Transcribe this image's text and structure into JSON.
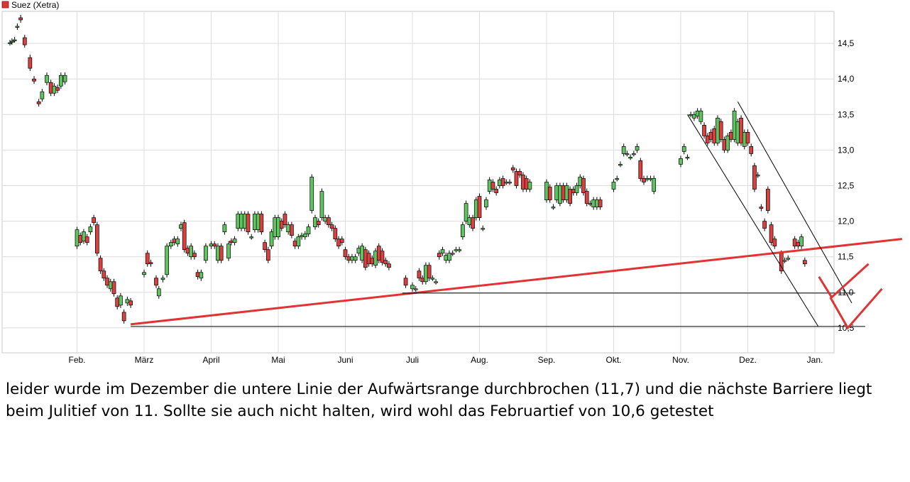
{
  "chart_data": {
    "type": "candlestick",
    "title": "",
    "legend": {
      "label": "Suez (Xetra)",
      "color": "#e03434",
      "placement": "top-left"
    },
    "x_ticks": [
      "Feb.",
      "März",
      "April",
      "Mai",
      "Juni",
      "Juli",
      "Aug.",
      "Sep.",
      "Okt.",
      "Nov.",
      "Dez.",
      "Jan."
    ],
    "y_ticks": [
      "14,5",
      "14,0",
      "13,5",
      "13,0",
      "12,5",
      "12,0",
      "11,5",
      "11,0",
      "10,5"
    ],
    "y_tick_values": [
      14.5,
      14.0,
      13.5,
      13.0,
      12.5,
      12.0,
      11.5,
      11.0,
      10.5
    ],
    "ylim": [
      10.15,
      14.95
    ],
    "grid": true,
    "up_color": "#5fc35f",
    "down_color": "#d94040",
    "candles": [
      {
        "m": 0.0,
        "o": 14.51,
        "c": 14.51
      },
      {
        "m": 0.03,
        "o": 14.52,
        "c": 14.53
      },
      {
        "m": 0.07,
        "o": 14.55,
        "c": 14.55
      },
      {
        "m": 0.11,
        "o": 14.73,
        "c": 14.74
      },
      {
        "m": 0.16,
        "o": 14.86,
        "c": 14.83
      },
      {
        "m": 0.22,
        "o": 14.58,
        "c": 14.48
      },
      {
        "m": 0.3,
        "o": 14.3,
        "c": 14.15
      },
      {
        "m": 0.36,
        "o": 14.0,
        "c": 13.97
      },
      {
        "m": 0.43,
        "o": 13.68,
        "c": 13.65
      },
      {
        "m": 0.48,
        "o": 13.72,
        "c": 13.82
      },
      {
        "m": 0.55,
        "o": 13.95,
        "c": 14.05
      },
      {
        "m": 0.61,
        "o": 13.95,
        "c": 13.8
      },
      {
        "m": 0.66,
        "o": 13.8,
        "c": 13.9
      },
      {
        "m": 0.71,
        "o": 13.88,
        "c": 13.84
      },
      {
        "m": 0.76,
        "o": 13.9,
        "c": 14.05
      },
      {
        "m": 0.82,
        "o": 13.96,
        "c": 14.05
      },
      {
        "m": 1.0,
        "o": 11.65,
        "c": 11.88
      },
      {
        "m": 1.05,
        "o": 11.8,
        "c": 11.7
      },
      {
        "m": 1.1,
        "o": 11.72,
        "c": 11.85
      },
      {
        "m": 1.15,
        "o": 11.78,
        "c": 11.7
      },
      {
        "m": 1.2,
        "o": 11.85,
        "c": 11.92
      },
      {
        "m": 1.25,
        "o": 12.05,
        "c": 11.98
      },
      {
        "m": 1.3,
        "o": 11.95,
        "c": 11.55
      },
      {
        "m": 1.35,
        "o": 11.48,
        "c": 11.3
      },
      {
        "m": 1.4,
        "o": 11.3,
        "c": 11.2
      },
      {
        "m": 1.45,
        "o": 11.2,
        "c": 11.1
      },
      {
        "m": 1.5,
        "o": 11.05,
        "c": 11.15
      },
      {
        "m": 1.55,
        "o": 11.15,
        "c": 10.98
      },
      {
        "m": 1.6,
        "o": 10.92,
        "c": 10.8
      },
      {
        "m": 1.65,
        "o": 10.82,
        "c": 10.95
      },
      {
        "m": 1.7,
        "o": 10.72,
        "c": 10.6
      },
      {
        "m": 1.75,
        "o": 10.85,
        "c": 10.9
      },
      {
        "m": 1.8,
        "o": 10.88,
        "c": 10.82
      },
      {
        "m": 2.0,
        "o": 11.25,
        "c": 11.28
      },
      {
        "m": 2.05,
        "o": 11.55,
        "c": 11.4
      },
      {
        "m": 2.1,
        "o": 11.42,
        "c": 11.4
      },
      {
        "m": 2.18,
        "o": 11.2,
        "c": 11.1
      },
      {
        "m": 2.22,
        "o": 10.95,
        "c": 11.05
      },
      {
        "m": 2.28,
        "o": 11.18,
        "c": 11.2
      },
      {
        "m": 2.34,
        "o": 11.25,
        "c": 11.65
      },
      {
        "m": 2.4,
        "o": 11.65,
        "c": 11.7
      },
      {
        "m": 2.45,
        "o": 11.75,
        "c": 11.7
      },
      {
        "m": 2.5,
        "o": 11.68,
        "c": 11.75
      },
      {
        "m": 2.55,
        "o": 11.9,
        "c": 11.95
      },
      {
        "m": 2.6,
        "o": 11.98,
        "c": 11.6
      },
      {
        "m": 2.65,
        "o": 11.62,
        "c": 11.55
      },
      {
        "m": 2.7,
        "o": 11.5,
        "c": 11.65
      },
      {
        "m": 2.75,
        "o": 11.55,
        "c": 11.5
      },
      {
        "m": 2.8,
        "o": 11.28,
        "c": 11.22
      },
      {
        "m": 2.85,
        "o": 11.2,
        "c": 11.28
      },
      {
        "m": 2.92,
        "o": 11.45,
        "c": 11.65
      },
      {
        "m": 3.0,
        "o": 11.65,
        "c": 11.68
      },
      {
        "m": 3.05,
        "o": 11.68,
        "c": 11.65
      },
      {
        "m": 3.1,
        "o": 11.45,
        "c": 11.65
      },
      {
        "m": 3.15,
        "o": 11.65,
        "c": 11.45
      },
      {
        "m": 3.2,
        "o": 11.85,
        "c": 11.95
      },
      {
        "m": 3.26,
        "o": 11.48,
        "c": 11.68
      },
      {
        "m": 3.3,
        "o": 11.72,
        "c": 11.7
      },
      {
        "m": 3.35,
        "o": 11.7,
        "c": 11.75
      },
      {
        "m": 3.4,
        "o": 11.9,
        "c": 12.1
      },
      {
        "m": 3.45,
        "o": 11.9,
        "c": 12.1
      },
      {
        "m": 3.5,
        "o": 11.9,
        "c": 12.1
      },
      {
        "m": 3.55,
        "o": 12.1,
        "c": 11.85
      },
      {
        "m": 3.6,
        "o": 11.78,
        "c": 11.78
      },
      {
        "m": 3.65,
        "o": 11.88,
        "c": 12.1
      },
      {
        "m": 3.7,
        "o": 11.88,
        "c": 12.1
      },
      {
        "m": 3.75,
        "o": 12.1,
        "c": 11.85
      },
      {
        "m": 3.8,
        "o": 11.7,
        "c": 11.6
      },
      {
        "m": 3.85,
        "o": 11.6,
        "c": 11.45
      },
      {
        "m": 3.9,
        "o": 11.65,
        "c": 11.85
      },
      {
        "m": 3.95,
        "o": 11.78,
        "c": 12.05
      },
      {
        "m": 4.0,
        "o": 11.78,
        "c": 12.05
      },
      {
        "m": 4.05,
        "o": 12.0,
        "c": 11.9
      },
      {
        "m": 4.1,
        "o": 12.1,
        "c": 11.95
      },
      {
        "m": 4.15,
        "o": 11.85,
        "c": 11.95
      },
      {
        "m": 4.2,
        "o": 11.95,
        "c": 11.8
      },
      {
        "m": 4.25,
        "o": 11.72,
        "c": 11.65
      },
      {
        "m": 4.3,
        "o": 11.65,
        "c": 11.78
      },
      {
        "m": 4.35,
        "o": 11.78,
        "c": 11.8
      },
      {
        "m": 4.4,
        "o": 11.78,
        "c": 11.82
      },
      {
        "m": 4.45,
        "o": 11.82,
        "c": 11.92
      },
      {
        "m": 4.5,
        "o": 12.15,
        "c": 12.62
      },
      {
        "m": 4.55,
        "o": 11.92,
        "c": 12.05
      },
      {
        "m": 4.6,
        "o": 12.0,
        "c": 11.95
      },
      {
        "m": 4.65,
        "o": 12.05,
        "c": 12.42
      },
      {
        "m": 4.7,
        "o": 12.0,
        "c": 12.05
      },
      {
        "m": 4.75,
        "o": 12.05,
        "c": 11.95
      },
      {
        "m": 4.8,
        "o": 11.95,
        "c": 11.9
      },
      {
        "m": 4.85,
        "o": 11.9,
        "c": 11.75
      },
      {
        "m": 4.9,
        "o": 11.75,
        "c": 11.65
      },
      {
        "m": 4.95,
        "o": 11.75,
        "c": 11.7
      },
      {
        "m": 5.0,
        "o": 11.6,
        "c": 11.5
      },
      {
        "m": 5.05,
        "o": 11.5,
        "c": 11.45
      },
      {
        "m": 5.1,
        "o": 11.45,
        "c": 11.5
      },
      {
        "m": 5.15,
        "o": 11.45,
        "c": 11.5
      },
      {
        "m": 5.2,
        "o": 11.55,
        "c": 11.62
      },
      {
        "m": 5.25,
        "o": 11.45,
        "c": 11.65
      },
      {
        "m": 5.3,
        "o": 11.6,
        "c": 11.35
      },
      {
        "m": 5.35,
        "o": 11.55,
        "c": 11.4
      },
      {
        "m": 5.4,
        "o": 11.48,
        "c": 11.4
      },
      {
        "m": 5.45,
        "o": 11.38,
        "c": 11.58
      },
      {
        "m": 5.5,
        "o": 11.65,
        "c": 11.45
      },
      {
        "m": 5.55,
        "o": 11.58,
        "c": 11.42
      },
      {
        "m": 5.6,
        "o": 11.45,
        "c": 11.4
      },
      {
        "m": 5.65,
        "o": 11.4,
        "c": 11.35
      },
      {
        "m": 5.9,
        "o": 11.2,
        "c": 11.1
      },
      {
        "m": 6.0,
        "o": 11.05,
        "c": 11.1
      },
      {
        "m": 6.05,
        "o": 11.05,
        "c": 11.05
      },
      {
        "m": 6.1,
        "o": 11.3,
        "c": 11.2
      },
      {
        "m": 6.15,
        "o": 11.2,
        "c": 11.15
      },
      {
        "m": 6.2,
        "o": 11.15,
        "c": 11.38
      },
      {
        "m": 6.25,
        "o": 11.38,
        "c": 11.2
      },
      {
        "m": 6.3,
        "o": 11.2,
        "c": 11.2
      },
      {
        "m": 6.35,
        "o": 11.15,
        "c": 11.15
      },
      {
        "m": 6.4,
        "o": 11.55,
        "c": 11.5
      },
      {
        "m": 6.45,
        "o": 11.55,
        "c": 11.6
      },
      {
        "m": 6.5,
        "o": 11.45,
        "c": 11.52
      },
      {
        "m": 6.55,
        "o": 11.45,
        "c": 11.55
      },
      {
        "m": 6.6,
        "o": 11.55,
        "c": 11.55
      },
      {
        "m": 6.65,
        "o": 11.6,
        "c": 11.6
      },
      {
        "m": 6.7,
        "o": 11.6,
        "c": 11.6
      },
      {
        "m": 6.75,
        "o": 11.78,
        "c": 11.95
      },
      {
        "m": 6.8,
        "o": 12.0,
        "c": 12.25
      },
      {
        "m": 6.85,
        "o": 11.95,
        "c": 12.05
      },
      {
        "m": 6.9,
        "o": 12.05,
        "c": 11.9
      },
      {
        "m": 6.95,
        "o": 12.05,
        "c": 12.3
      },
      {
        "m": 7.0,
        "o": 12.35,
        "c": 12.05
      },
      {
        "m": 7.05,
        "o": 11.9,
        "c": 11.9
      },
      {
        "m": 7.1,
        "o": 12.2,
        "c": 12.3
      },
      {
        "m": 7.15,
        "o": 12.42,
        "c": 12.58
      },
      {
        "m": 7.2,
        "o": 12.55,
        "c": 12.45
      },
      {
        "m": 7.25,
        "o": 12.45,
        "c": 12.4
      },
      {
        "m": 7.3,
        "o": 12.5,
        "c": 12.58
      },
      {
        "m": 7.35,
        "o": 12.6,
        "c": 12.5
      },
      {
        "m": 7.4,
        "o": 12.55,
        "c": 12.55
      },
      {
        "m": 7.45,
        "o": 12.55,
        "c": 12.55
      },
      {
        "m": 7.5,
        "o": 12.75,
        "c": 12.72
      },
      {
        "m": 7.55,
        "o": 12.7,
        "c": 12.5
      },
      {
        "m": 7.6,
        "o": 12.7,
        "c": 12.65
      },
      {
        "m": 7.65,
        "o": 12.65,
        "c": 12.45
      },
      {
        "m": 7.7,
        "o": 12.6,
        "c": 12.45
      },
      {
        "m": 7.75,
        "o": 12.45,
        "c": 12.55
      },
      {
        "m": 8.0,
        "o": 12.3,
        "c": 12.55
      },
      {
        "m": 8.05,
        "o": 12.48,
        "c": 12.3
      },
      {
        "m": 8.1,
        "o": 12.2,
        "c": 12.2
      },
      {
        "m": 8.15,
        "o": 12.3,
        "c": 12.5
      },
      {
        "m": 8.2,
        "o": 12.25,
        "c": 12.5
      },
      {
        "m": 8.25,
        "o": 12.5,
        "c": 12.3
      },
      {
        "m": 8.3,
        "o": 12.3,
        "c": 12.5
      },
      {
        "m": 8.35,
        "o": 12.45,
        "c": 12.25
      },
      {
        "m": 8.4,
        "o": 12.45,
        "c": 12.4
      },
      {
        "m": 8.45,
        "o": 12.4,
        "c": 12.5
      },
      {
        "m": 8.5,
        "o": 12.5,
        "c": 12.62
      },
      {
        "m": 8.55,
        "o": 12.6,
        "c": 12.4
      },
      {
        "m": 8.6,
        "o": 12.42,
        "c": 12.25
      },
      {
        "m": 8.65,
        "o": 12.25,
        "c": 12.25
      },
      {
        "m": 8.7,
        "o": 12.2,
        "c": 12.3
      },
      {
        "m": 8.75,
        "o": 12.2,
        "c": 12.3
      },
      {
        "m": 8.8,
        "o": 12.3,
        "c": 12.2
      },
      {
        "m": 9.0,
        "o": 12.45,
        "c": 12.55
      },
      {
        "m": 9.05,
        "o": 12.6,
        "c": 12.6
      },
      {
        "m": 9.1,
        "o": 12.8,
        "c": 12.8
      },
      {
        "m": 9.15,
        "o": 12.95,
        "c": 13.05
      },
      {
        "m": 9.2,
        "o": 12.95,
        "c": 12.95
      },
      {
        "m": 9.25,
        "o": 12.9,
        "c": 12.9
      },
      {
        "m": 9.3,
        "o": 12.95,
        "c": 12.95
      },
      {
        "m": 9.35,
        "o": 13.0,
        "c": 13.05
      },
      {
        "m": 9.4,
        "o": 12.85,
        "c": 12.6
      },
      {
        "m": 9.45,
        "o": 12.6,
        "c": 12.55
      },
      {
        "m": 9.5,
        "o": 12.6,
        "c": 12.6
      },
      {
        "m": 9.55,
        "o": 12.6,
        "c": 12.6
      },
      {
        "m": 9.6,
        "o": 12.42,
        "c": 12.6
      },
      {
        "m": 10.0,
        "o": 12.8,
        "c": 12.88
      },
      {
        "m": 10.05,
        "o": 12.98,
        "c": 13.05
      },
      {
        "m": 10.1,
        "o": 12.9,
        "c": 12.9
      },
      {
        "m": 10.15,
        "o": 13.5,
        "c": 13.5
      },
      {
        "m": 10.2,
        "o": 13.45,
        "c": 13.5
      },
      {
        "m": 10.25,
        "o": 13.48,
        "c": 13.55
      },
      {
        "m": 10.3,
        "o": 13.4,
        "c": 13.55
      },
      {
        "m": 10.35,
        "o": 13.35,
        "c": 13.2
      },
      {
        "m": 10.4,
        "o": 13.2,
        "c": 13.1
      },
      {
        "m": 10.45,
        "o": 13.25,
        "c": 13.15
      },
      {
        "m": 10.5,
        "o": 13.3,
        "c": 13.1
      },
      {
        "m": 10.55,
        "o": 13.1,
        "c": 13.45
      },
      {
        "m": 10.6,
        "o": 13.4,
        "c": 13.15
      },
      {
        "m": 10.65,
        "o": 13.15,
        "c": 13.0
      },
      {
        "m": 10.7,
        "o": 13.0,
        "c": 13.2
      },
      {
        "m": 10.75,
        "o": 13.25,
        "c": 13.15
      },
      {
        "m": 10.8,
        "o": 13.15,
        "c": 13.55
      },
      {
        "m": 10.85,
        "o": 13.1,
        "c": 13.4
      },
      {
        "m": 10.9,
        "o": 13.45,
        "c": 13.1
      },
      {
        "m": 10.95,
        "o": 13.05,
        "c": 13.25
      },
      {
        "m": 11.0,
        "o": 13.25,
        "c": 13.1
      },
      {
        "m": 11.05,
        "o": 13.05,
        "c": 12.95
      },
      {
        "m": 11.1,
        "o": 12.78,
        "c": 12.45
      },
      {
        "m": 11.15,
        "o": 12.65,
        "c": 12.65
      },
      {
        "m": 11.2,
        "o": 12.2,
        "c": 12.18
      },
      {
        "m": 11.25,
        "o": 12.0,
        "c": 11.9
      },
      {
        "m": 11.3,
        "o": 12.45,
        "c": 12.15
      },
      {
        "m": 11.35,
        "o": 11.95,
        "c": 11.7
      },
      {
        "m": 11.4,
        "o": 11.75,
        "c": 11.65
      },
      {
        "m": 11.5,
        "o": 11.55,
        "c": 11.3
      },
      {
        "m": 11.55,
        "o": 11.45,
        "c": 11.45
      },
      {
        "m": 11.6,
        "o": 11.48,
        "c": 11.48
      },
      {
        "m": 11.7,
        "o": 11.75,
        "c": 11.65
      },
      {
        "m": 11.75,
        "o": 11.7,
        "c": 11.65
      },
      {
        "m": 11.8,
        "o": 11.65,
        "c": 11.78
      },
      {
        "m": 11.85,
        "o": 11.45,
        "c": 11.4
      }
    ],
    "overlay_lines": [
      {
        "role": "rising trendline",
        "color": "#e03434",
        "from_m": 1.8,
        "from_y": 10.55,
        "to_m": 13.3,
        "to_y": 11.75
      },
      {
        "role": "support July low",
        "color": "#000000",
        "from_m": 5.85,
        "from_y": 10.99,
        "to_m": 12.6,
        "to_y": 10.99
      },
      {
        "role": "support February low",
        "color": "#000000",
        "from_m": 1.8,
        "from_y": 10.52,
        "to_m": 12.75,
        "to_y": 10.52
      },
      {
        "role": "channel upper",
        "color": "#000000",
        "from_m": 10.85,
        "from_y": 13.68,
        "to_m": 12.55,
        "to_y": 10.85
      },
      {
        "role": "channel lower",
        "color": "#000000",
        "from_m": 10.1,
        "from_y": 13.5,
        "to_m": 12.05,
        "to_y": 10.52
      },
      {
        "role": "scenario A",
        "color": "#e03434",
        "points": [
          [
            12.06,
            11.22
          ],
          [
            12.25,
            10.93
          ],
          [
            12.8,
            11.4
          ]
        ]
      },
      {
        "role": "scenario B",
        "color": "#e03434",
        "points": [
          [
            12.23,
            10.93
          ],
          [
            12.49,
            10.5
          ],
          [
            13.0,
            11.05
          ]
        ]
      }
    ]
  },
  "note": {
    "text": "leider wurde im Dezember die untere Linie der Aufwärtsrange durchbrochen (11,7) und die nächste Barriere liegt beim Julitief von 11.  Sollte sie auch nicht halten, wird wohl das Februartief von 10,6 getestet"
  }
}
